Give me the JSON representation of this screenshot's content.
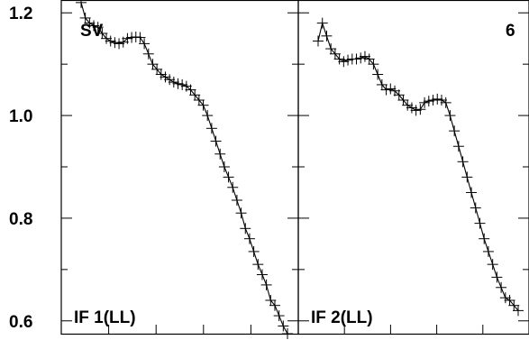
{
  "chart_data": [
    {
      "type": "line",
      "panel_label_top": "SV",
      "panel_label_bottom": "IF 1(LL)",
      "ylim": [
        0.575,
        1.225
      ],
      "yticks": [
        0.6,
        0.8,
        1.0,
        1.2
      ],
      "ytick_labels": [
        "0.6",
        "0.8",
        "1.0",
        "1.2"
      ],
      "markers": "plus",
      "series": [
        {
          "x": [
            1,
            2,
            3,
            4,
            5,
            6,
            7,
            8,
            9,
            10,
            11,
            12,
            13,
            14,
            15,
            16,
            17,
            18,
            19,
            20,
            21,
            22,
            23,
            24,
            25,
            26,
            27,
            28,
            29,
            30,
            31,
            32,
            33,
            34,
            35,
            36,
            37,
            38,
            39,
            40,
            41,
            42,
            43,
            44,
            45,
            46,
            47,
            48,
            49,
            50
          ],
          "values": [
            1.22,
            1.19,
            1.18,
            1.175,
            1.172,
            1.16,
            1.15,
            1.145,
            1.142,
            1.14,
            1.143,
            1.15,
            1.152,
            1.153,
            1.152,
            1.14,
            1.12,
            1.1,
            1.09,
            1.08,
            1.075,
            1.07,
            1.065,
            1.062,
            1.06,
            1.057,
            1.05,
            1.04,
            1.03,
            1.02,
            1.0,
            0.975,
            0.95,
            0.925,
            0.9,
            0.88,
            0.86,
            0.835,
            0.81,
            0.78,
            0.76,
            0.735,
            0.71,
            0.69,
            0.67,
            0.64,
            0.63,
            0.61,
            0.59,
            0.575
          ]
        }
      ]
    },
    {
      "type": "line",
      "panel_label_top": "6",
      "panel_label_bottom": "IF 2(LL)",
      "ylim": [
        0.575,
        1.225
      ],
      "markers": "plus",
      "series": [
        {
          "x": [
            1,
            2,
            3,
            4,
            5,
            6,
            7,
            8,
            9,
            10,
            11,
            12,
            13,
            14,
            15,
            16,
            17,
            18,
            19,
            20,
            21,
            22,
            23,
            24,
            25,
            26,
            27,
            28,
            29,
            30,
            31,
            32,
            33,
            34,
            35,
            36,
            37,
            38,
            39,
            40,
            41,
            42,
            43,
            44,
            45,
            46,
            47,
            48
          ],
          "values": [
            1.145,
            1.18,
            1.155,
            1.13,
            1.12,
            1.11,
            1.105,
            1.108,
            1.11,
            1.11,
            1.112,
            1.115,
            1.11,
            1.1,
            1.08,
            1.06,
            1.05,
            1.052,
            1.048,
            1.04,
            1.03,
            1.02,
            1.015,
            1.01,
            1.012,
            1.025,
            1.028,
            1.03,
            1.032,
            1.03,
            1.025,
            1.0,
            0.97,
            0.94,
            0.91,
            0.88,
            0.85,
            0.82,
            0.79,
            0.76,
            0.735,
            0.71,
            0.685,
            0.665,
            0.645,
            0.64,
            0.63,
            0.62
          ]
        }
      ]
    }
  ]
}
